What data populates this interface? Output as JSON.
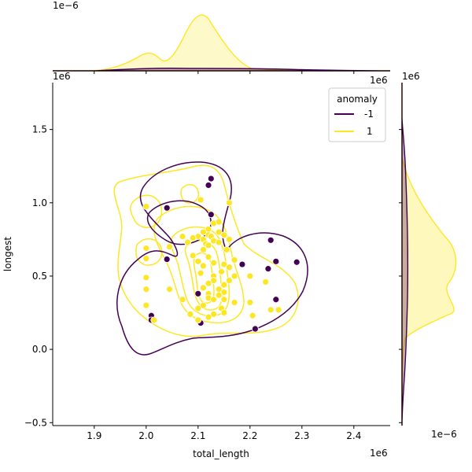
{
  "chart_data": {
    "type": "scatter",
    "subtype": "jointplot-kde",
    "xlabel": "total_length",
    "ylabel": "longest",
    "x_offset_label": "1e6",
    "y_offset_label": "1e6",
    "top_marginal_offset_label": "1e−6",
    "right_marginal_offset_label": "1e−6",
    "xlim": [
      1.82,
      2.47
    ],
    "ylim": [
      -0.52,
      1.82
    ],
    "x_ticks": [
      1.9,
      2.0,
      2.1,
      2.2,
      2.3,
      2.4
    ],
    "y_ticks": [
      -0.5,
      0.0,
      0.5,
      1.0,
      1.5
    ],
    "x_tick_labels": [
      "1.9",
      "2.0",
      "2.1",
      "2.2",
      "2.3",
      "2.4"
    ],
    "y_tick_labels": [
      "−0.5",
      "0.0",
      "0.5",
      "1.0",
      "1.5"
    ],
    "legend": {
      "title": "anomaly",
      "placement": "top-right",
      "entries": [
        {
          "label": "-1",
          "color": "#440154"
        },
        {
          "label": "1",
          "color": "#fde725"
        }
      ]
    },
    "series": [
      {
        "name": "-1",
        "color": "#440154",
        "points": [
          [
            2.125,
            1.165
          ],
          [
            2.12,
            1.12
          ],
          [
            2.04,
            0.965
          ],
          [
            2.125,
            0.92
          ],
          [
            2.24,
            0.745
          ],
          [
            2.25,
            0.6
          ],
          [
            2.29,
            0.595
          ],
          [
            2.235,
            0.55
          ],
          [
            2.185,
            0.58
          ],
          [
            2.04,
            0.615
          ],
          [
            2.1,
            0.38
          ],
          [
            2.25,
            0.34
          ],
          [
            2.01,
            0.23
          ],
          [
            2.01,
            0.2
          ],
          [
            2.105,
            0.18
          ],
          [
            2.21,
            0.14
          ]
        ]
      },
      {
        "name": "1",
        "color": "#fde725",
        "points": [
          [
            2.0,
            0.975
          ],
          [
            2.105,
            1.02
          ],
          [
            2.16,
            1.0
          ],
          [
            2.13,
            0.86
          ],
          [
            2.14,
            0.87
          ],
          [
            2.12,
            0.82
          ],
          [
            2.14,
            0.8
          ],
          [
            2.11,
            0.8
          ],
          [
            2.12,
            0.78
          ],
          [
            2.15,
            0.78
          ],
          [
            2.16,
            0.75
          ],
          [
            2.1,
            0.77
          ],
          [
            2.09,
            0.76
          ],
          [
            2.07,
            0.77
          ],
          [
            2.11,
            0.75
          ],
          [
            2.125,
            0.77
          ],
          [
            2.13,
            0.74
          ],
          [
            2.08,
            0.73
          ],
          [
            2.115,
            0.72
          ],
          [
            2.14,
            0.73
          ],
          [
            2.12,
            0.71
          ],
          [
            2.0,
            0.69
          ],
          [
            2.045,
            0.7
          ],
          [
            2.11,
            0.68
          ],
          [
            2.155,
            0.68
          ],
          [
            2.0,
            0.62
          ],
          [
            2.09,
            0.64
          ],
          [
            2.12,
            0.63
          ],
          [
            2.17,
            0.61
          ],
          [
            2.1,
            0.6
          ],
          [
            2.13,
            0.59
          ],
          [
            2.15,
            0.58
          ],
          [
            2.11,
            0.57
          ],
          [
            2.16,
            0.56
          ],
          [
            2.145,
            0.53
          ],
          [
            2.105,
            0.52
          ],
          [
            2.13,
            0.5
          ],
          [
            2.17,
            0.5
          ],
          [
            2.2,
            0.5
          ],
          [
            2.13,
            0.47
          ],
          [
            2.16,
            0.47
          ],
          [
            2.0,
            0.49
          ],
          [
            2.23,
            0.46
          ],
          [
            2.12,
            0.45
          ],
          [
            2.15,
            0.44
          ],
          [
            2.11,
            0.42
          ],
          [
            2.14,
            0.41
          ],
          [
            2.0,
            0.41
          ],
          [
            2.045,
            0.41
          ],
          [
            2.15,
            0.39
          ],
          [
            2.12,
            0.38
          ],
          [
            2.14,
            0.37
          ],
          [
            2.12,
            0.35
          ],
          [
            2.13,
            0.34
          ],
          [
            2.15,
            0.34
          ],
          [
            2.07,
            0.34
          ],
          [
            2.2,
            0.32
          ],
          [
            2.17,
            0.32
          ],
          [
            2.11,
            0.3
          ],
          [
            2.0,
            0.3
          ],
          [
            2.1,
            0.28
          ],
          [
            2.145,
            0.28
          ],
          [
            2.24,
            0.27
          ],
          [
            2.255,
            0.27
          ],
          [
            2.15,
            0.25
          ],
          [
            2.13,
            0.24
          ],
          [
            2.085,
            0.24
          ],
          [
            2.205,
            0.23
          ],
          [
            2.12,
            0.22
          ],
          [
            2.1,
            0.2
          ],
          [
            2.015,
            0.2
          ]
        ]
      }
    ]
  }
}
